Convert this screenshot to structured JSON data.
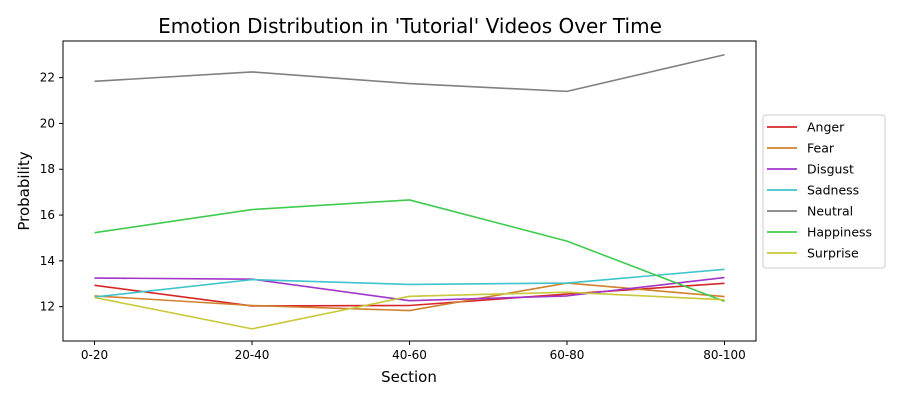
{
  "chart_data": {
    "type": "line",
    "title": "Emotion Distribution in 'Tutorial' Videos Over Time",
    "xlabel": "Section",
    "ylabel": "Probability",
    "categories": [
      "0-20",
      "20-40",
      "40-60",
      "60-80",
      "80-100"
    ],
    "ylim": [
      10.5,
      23.6
    ],
    "yticks": [
      12,
      14,
      16,
      18,
      20,
      22
    ],
    "grid": false,
    "legend_position": "center-right",
    "series": [
      {
        "name": "Anger",
        "color": "#d62728",
        "values": [
          12.93,
          12.03,
          12.05,
          12.55,
          13.02
        ]
      },
      {
        "name": "Fear",
        "color": "#d0812e",
        "values": [
          12.47,
          12.05,
          11.83,
          13.03,
          12.44
        ]
      },
      {
        "name": "Disgust",
        "color": "#a235c9",
        "values": [
          13.25,
          13.2,
          12.26,
          12.47,
          13.27
        ]
      },
      {
        "name": "Sadness",
        "color": "#3ec4cc",
        "values": [
          12.42,
          13.18,
          12.97,
          13.03,
          13.63
        ]
      },
      {
        "name": "Neutral",
        "color": "#808080",
        "values": [
          21.84,
          22.25,
          21.74,
          21.4,
          23.0
        ]
      },
      {
        "name": "Happiness",
        "color": "#3fcc4e",
        "values": [
          15.23,
          16.24,
          16.66,
          14.86,
          12.23
        ]
      },
      {
        "name": "Surprise",
        "color": "#c8c83a",
        "values": [
          12.4,
          11.03,
          12.45,
          12.63,
          12.3
        ]
      }
    ]
  }
}
